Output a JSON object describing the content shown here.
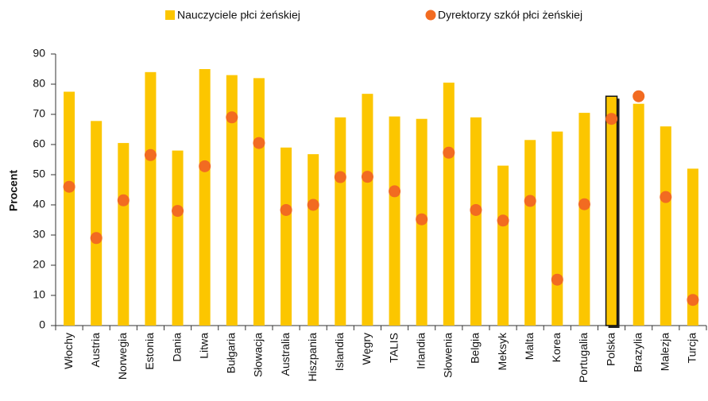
{
  "chart_data": {
    "type": "bar",
    "categories": [
      "Włochy",
      "Austria",
      "Norwegia",
      "Estonia",
      "Dania",
      "Litwa",
      "Bułgaria",
      "Słowacja",
      "Australia",
      "Hiszpania",
      "Islandia",
      "Węgry",
      "TALIS",
      "Irlandia",
      "Słowenia",
      "Belgia",
      "Meksyk",
      "Malta",
      "Korea",
      "Portugalia",
      "Polska",
      "Brazylia",
      "Malezja",
      "Turcja"
    ],
    "series": [
      {
        "name": "Nauczyciele płci żeńskiej",
        "type": "bar",
        "color": "#fcc600",
        "values": [
          77.5,
          67.8,
          60.5,
          84,
          58,
          85,
          83,
          82,
          59,
          56.8,
          69,
          76.8,
          69.3,
          68.5,
          80.5,
          69,
          53,
          61.5,
          64.3,
          70.5,
          76,
          73.5,
          66,
          52
        ]
      },
      {
        "name": "Dyrektorzy szkół płci żeńskiej",
        "type": "scatter",
        "color": "#f26b21",
        "values": [
          46,
          29,
          41.5,
          56.5,
          38,
          52.8,
          69,
          60.5,
          38.3,
          40,
          49.2,
          49.3,
          44.5,
          35.2,
          57.3,
          38.3,
          34.8,
          41.3,
          15.2,
          40.2,
          68.5,
          76,
          42.6,
          8.5
        ]
      }
    ],
    "highlight": "Polska",
    "y_label": "Procent",
    "ylim": [
      0,
      90
    ],
    "yticks": [
      0,
      10,
      20,
      30,
      40,
      50,
      60,
      70,
      80,
      90
    ],
    "grid": false
  }
}
